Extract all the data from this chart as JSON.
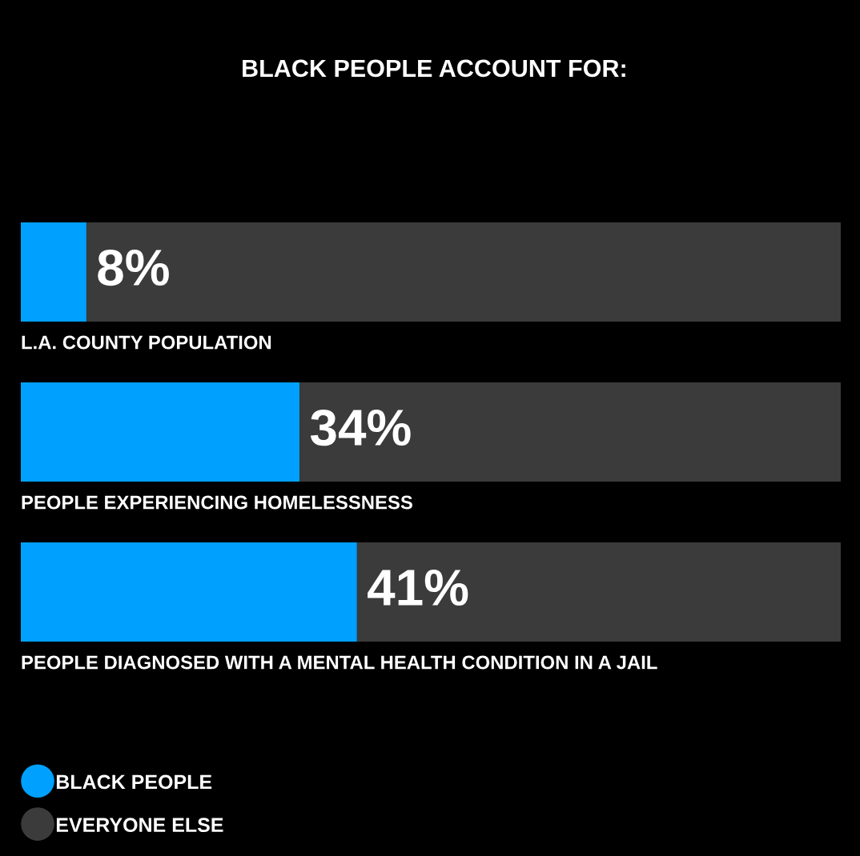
{
  "chart_data": {
    "type": "bar",
    "orientation": "horizontal",
    "stacked": true,
    "title": "BLACK PEOPLE ACCOUNT FOR:",
    "categories": [
      "L.A. COUNTY POPULATION",
      "PEOPLE EXPERIENCING HOMELESSNESS",
      "PEOPLE DIAGNOSED WITH A MENTAL HEALTH CONDITION IN A JAIL"
    ],
    "series": [
      {
        "name": "BLACK PEOPLE",
        "color": "#00a0ff",
        "values": [
          8,
          34,
          41
        ],
        "value_labels": [
          "8%",
          "34%",
          "41%"
        ]
      },
      {
        "name": "EVERYONE ELSE",
        "color": "#3b3b3b",
        "values": [
          92,
          66,
          59
        ]
      }
    ],
    "xlim": [
      0,
      100
    ],
    "tick_labels": "y",
    "legend": "bottom left"
  }
}
